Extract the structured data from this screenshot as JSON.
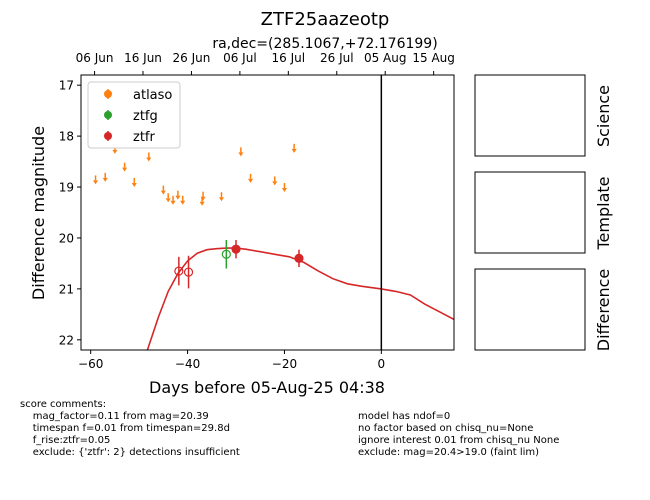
{
  "chart_data": {
    "type": "scatter",
    "title": "ZTF25aazeotp",
    "subtitle": "ra,dec=(285.1067,+72.176199)",
    "xlabel": "Days before 05-Aug-25 04:38",
    "ylabel": "Difference magnitude",
    "xlim": [
      -62,
      15
    ],
    "ylim": [
      22.2,
      16.8
    ],
    "y_inverted": true,
    "xticks": [
      -60,
      -40,
      -20,
      0
    ],
    "yticks": [
      17,
      18,
      19,
      20,
      21,
      22
    ],
    "top_axis_ticks": [
      {
        "x": -59.2,
        "label": "06 Jun"
      },
      {
        "x": -49.2,
        "label": "16 Jun"
      },
      {
        "x": -39.2,
        "label": "26 Jun"
      },
      {
        "x": -29.2,
        "label": "06 Jul"
      },
      {
        "x": -19.2,
        "label": "16 Jul"
      },
      {
        "x": -9.2,
        "label": "26 Jul"
      },
      {
        "x": 0.8,
        "label": "05 Aug"
      },
      {
        "x": 10.8,
        "label": "15 Aug"
      }
    ],
    "legend_position": "top-left",
    "vline_x": 0,
    "series": [
      {
        "name": "atlaso",
        "color": "#ff7f0e",
        "marker": "upper-limit-arrow",
        "points": [
          {
            "x": -59.0,
            "y": 18.85
          },
          {
            "x": -57.0,
            "y": 18.8
          },
          {
            "x": -55.0,
            "y": 18.25
          },
          {
            "x": -53.0,
            "y": 18.6
          },
          {
            "x": -51.0,
            "y": 18.9
          },
          {
            "x": -48.0,
            "y": 18.4
          },
          {
            "x": -45.0,
            "y": 19.05
          },
          {
            "x": -44.0,
            "y": 19.2
          },
          {
            "x": -43.0,
            "y": 19.25
          },
          {
            "x": -42.0,
            "y": 19.15
          },
          {
            "x": -41.0,
            "y": 19.25
          },
          {
            "x": -37.0,
            "y": 19.27
          },
          {
            "x": -36.8,
            "y": 19.17
          },
          {
            "x": -33.0,
            "y": 19.18
          },
          {
            "x": -29.0,
            "y": 18.3
          },
          {
            "x": -27.0,
            "y": 18.82
          },
          {
            "x": -22.0,
            "y": 18.87
          },
          {
            "x": -20.0,
            "y": 19.0
          },
          {
            "x": -18.0,
            "y": 18.23
          }
        ]
      },
      {
        "name": "ztfg",
        "color": "#2ca02c",
        "marker": "circle",
        "points": [
          {
            "x": -32.0,
            "y": 20.32,
            "err": 0.28,
            "filled": false
          }
        ]
      },
      {
        "name": "ztfr",
        "color": "#d62728",
        "marker": "circle",
        "points": [
          {
            "x": -41.8,
            "y": 20.65,
            "err": 0.28,
            "filled": false
          },
          {
            "x": -39.8,
            "y": 20.67,
            "err": 0.32,
            "filled": false
          },
          {
            "x": -30.0,
            "y": 20.22,
            "err": 0.18,
            "filled": true
          },
          {
            "x": -17.0,
            "y": 20.4,
            "err": 0.17,
            "filled": true
          }
        ]
      }
    ],
    "model_curve": {
      "color": "#d62728",
      "points": [
        {
          "x": -48.3,
          "y": 22.2
        },
        {
          "x": -46.0,
          "y": 21.55
        },
        {
          "x": -44.0,
          "y": 21.05
        },
        {
          "x": -42.0,
          "y": 20.7
        },
        {
          "x": -40.0,
          "y": 20.45
        },
        {
          "x": -38.0,
          "y": 20.3
        },
        {
          "x": -36.0,
          "y": 20.23
        },
        {
          "x": -34.0,
          "y": 20.21
        },
        {
          "x": -32.0,
          "y": 20.2
        },
        {
          "x": -30.0,
          "y": 20.2
        },
        {
          "x": -28.0,
          "y": 20.22
        },
        {
          "x": -25.0,
          "y": 20.27
        },
        {
          "x": -22.0,
          "y": 20.32
        },
        {
          "x": -19.0,
          "y": 20.37
        },
        {
          "x": -16.0,
          "y": 20.48
        },
        {
          "x": -13.0,
          "y": 20.65
        },
        {
          "x": -10.0,
          "y": 20.8
        },
        {
          "x": -7.0,
          "y": 20.9
        },
        {
          "x": -4.0,
          "y": 20.95
        },
        {
          "x": 0.0,
          "y": 21.0
        },
        {
          "x": 3.0,
          "y": 21.05
        },
        {
          "x": 6.0,
          "y": 21.12
        },
        {
          "x": 9.0,
          "y": 21.3
        },
        {
          "x": 12.0,
          "y": 21.45
        },
        {
          "x": 15.0,
          "y": 21.6
        }
      ]
    }
  },
  "side_panels": [
    "Science",
    "Template",
    "Difference"
  ],
  "comments_left": [
    "score comments:",
    "    mag_factor=0.11 from mag=20.39",
    "    timespan f=0.01 from timespan=29.8d",
    "    f_rise:ztfr=0.05",
    "    exclude: {'ztfr': 2} detections insufficient"
  ],
  "comments_right": [
    "model has ndof=0",
    "no factor based on chisq_nu=None",
    "ignore interest 0.01 from chisq_nu None",
    "exclude: mag=20.4>19.0 (faint lim)"
  ]
}
